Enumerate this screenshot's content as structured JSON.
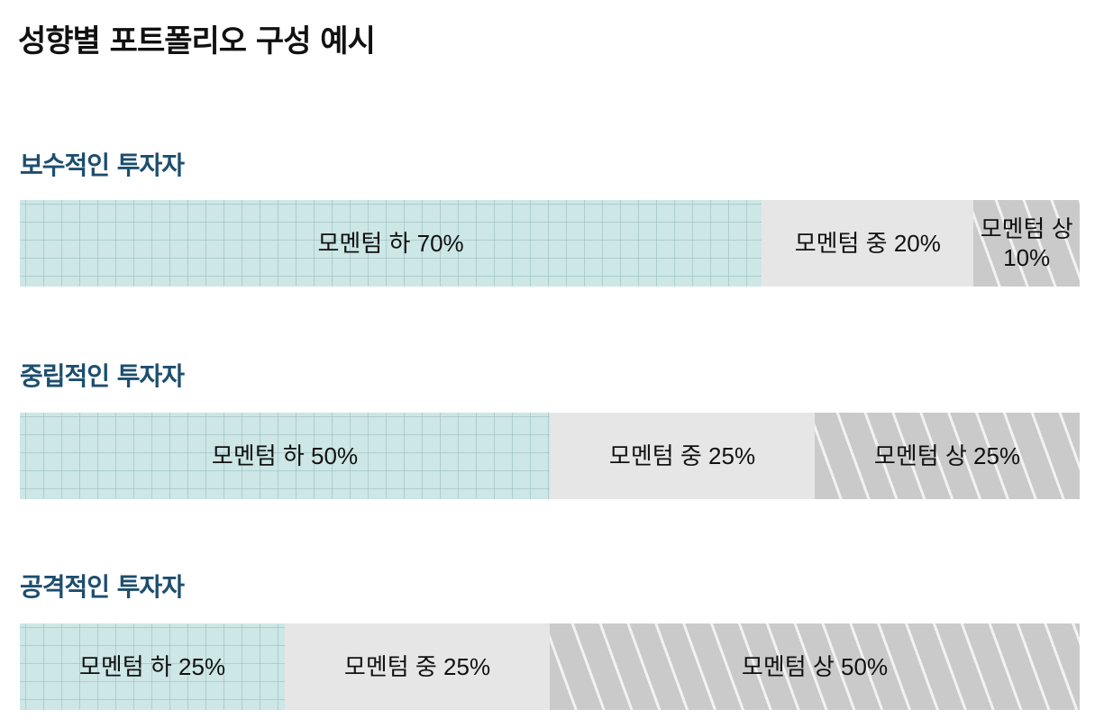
{
  "chart_data": {
    "type": "bar",
    "title": "성향별 포트폴리오 구성 예시",
    "stacked": true,
    "orientation": "horizontal",
    "unit": "%",
    "colors": {
      "low": "#cde6e6",
      "mid": "#e6e6e6",
      "high": "#cacaca",
      "group_label": "#1d4e6e"
    },
    "groups": [
      {
        "label": "보수적인 투자자",
        "segments": [
          {
            "key": "low",
            "label": "모멘텀 하 70%",
            "value": 70
          },
          {
            "key": "mid",
            "label": "모멘텀 중 20%",
            "value": 20
          },
          {
            "key": "high",
            "label": "모멘텀 상 10%",
            "value": 10
          }
        ]
      },
      {
        "label": "중립적인 투자자",
        "segments": [
          {
            "key": "low",
            "label": "모멘텀 하 50%",
            "value": 50
          },
          {
            "key": "mid",
            "label": "모멘텀 중 25%",
            "value": 25
          },
          {
            "key": "high",
            "label": "모멘텀 상 25%",
            "value": 25
          }
        ]
      },
      {
        "label": "공격적인 투자자",
        "segments": [
          {
            "key": "low",
            "label": "모멘텀 하 25%",
            "value": 25
          },
          {
            "key": "mid",
            "label": "모멘텀 중 25%",
            "value": 25
          },
          {
            "key": "high",
            "label": "모멘텀 상 50%",
            "value": 50
          }
        ]
      }
    ]
  }
}
